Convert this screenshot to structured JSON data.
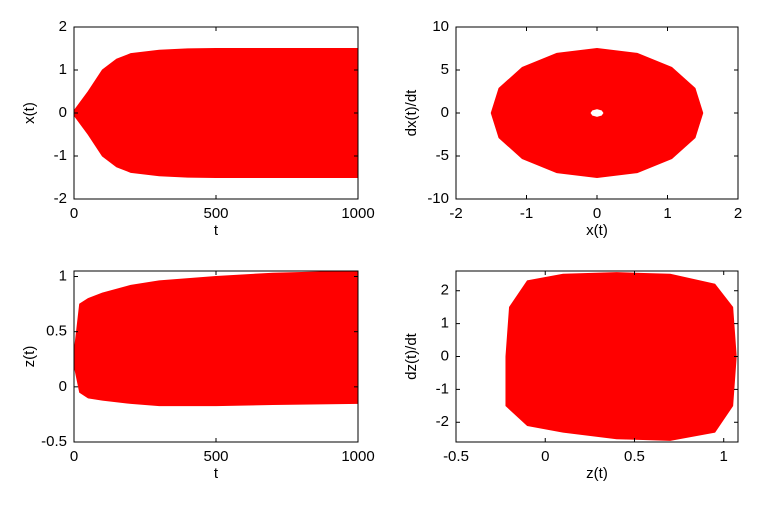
{
  "chart_data": [
    {
      "type": "band",
      "xlabel": "t",
      "ylabel": "x(t)",
      "xlim": [
        0,
        1000
      ],
      "xticks": [
        0,
        500,
        1000
      ],
      "ylim": [
        -2,
        2
      ],
      "yticks": [
        -2,
        -1,
        0,
        1,
        2
      ],
      "color": "#ff0000",
      "x": [
        0,
        50,
        100,
        150,
        200,
        300,
        400,
        500,
        700,
        1000
      ],
      "upper": [
        0.05,
        0.5,
        1.0,
        1.25,
        1.38,
        1.46,
        1.49,
        1.5,
        1.5,
        1.5
      ],
      "lower": [
        -0.05,
        -0.5,
        -1.0,
        -1.25,
        -1.38,
        -1.46,
        -1.49,
        -1.5,
        -1.5,
        -1.5
      ]
    },
    {
      "type": "phase",
      "xlabel": "x(t)",
      "ylabel": "dx(t)/dt",
      "xlim": [
        -2,
        2
      ],
      "xticks": [
        -2,
        -1,
        0,
        1,
        2
      ],
      "ylim": [
        -10,
        10
      ],
      "yticks": [
        -10,
        -5,
        0,
        5,
        10
      ],
      "color": "#ff0000",
      "outline": {
        "x": [
          1.5,
          1.39,
          1.06,
          0.57,
          0,
          -0.57,
          -1.06,
          -1.39,
          -1.5,
          -1.39,
          -1.06,
          -0.57,
          0,
          0.57,
          1.06,
          1.39
        ],
        "y": [
          0,
          2.87,
          5.3,
          6.93,
          7.5,
          6.93,
          5.3,
          2.87,
          0,
          -2.87,
          -5.3,
          -6.93,
          -7.5,
          -6.93,
          -5.3,
          -2.87
        ]
      },
      "hole": {
        "x": [
          0.1,
          0.07,
          0,
          -0.07,
          -0.1,
          -0.07,
          0,
          0.07
        ],
        "y": [
          0,
          0.35,
          0.5,
          0.35,
          0,
          -0.35,
          -0.5,
          -0.35
        ]
      }
    },
    {
      "type": "band",
      "xlabel": "t",
      "ylabel": "z(t)",
      "xlim": [
        0,
        1000
      ],
      "xticks": [
        0,
        500,
        1000
      ],
      "ylim": [
        -0.5,
        1.05
      ],
      "yticks": [
        -0.5,
        0,
        0.5,
        1
      ],
      "color": "#ff0000",
      "x": [
        0,
        20,
        50,
        100,
        200,
        300,
        500,
        700,
        1000
      ],
      "upper": [
        0.3,
        0.75,
        0.8,
        0.85,
        0.92,
        0.96,
        1.0,
        1.03,
        1.05
      ],
      "lower": [
        0.2,
        -0.05,
        -0.1,
        -0.12,
        -0.15,
        -0.17,
        -0.17,
        -0.16,
        -0.15
      ]
    },
    {
      "type": "phase",
      "xlabel": "z(t)",
      "ylabel": "dz(t)/dt",
      "xlim": [
        -0.5,
        1.08
      ],
      "xticks": [
        -0.5,
        0,
        0.5,
        1
      ],
      "ylim": [
        -2.6,
        2.6
      ],
      "yticks": [
        -2,
        -1,
        0,
        1,
        2
      ],
      "color": "#ff0000",
      "outline": {
        "x": [
          -0.22,
          -0.22,
          -0.2,
          -0.1,
          0.1,
          0.4,
          0.7,
          0.95,
          1.05,
          1.07,
          1.05,
          0.95,
          0.7,
          0.4,
          0.1,
          -0.1
        ],
        "y": [
          -1.5,
          0,
          1.5,
          2.3,
          2.5,
          2.55,
          2.5,
          2.2,
          1.5,
          0,
          -1.5,
          -2.3,
          -2.55,
          -2.5,
          -2.3,
          -2.1
        ]
      }
    }
  ]
}
